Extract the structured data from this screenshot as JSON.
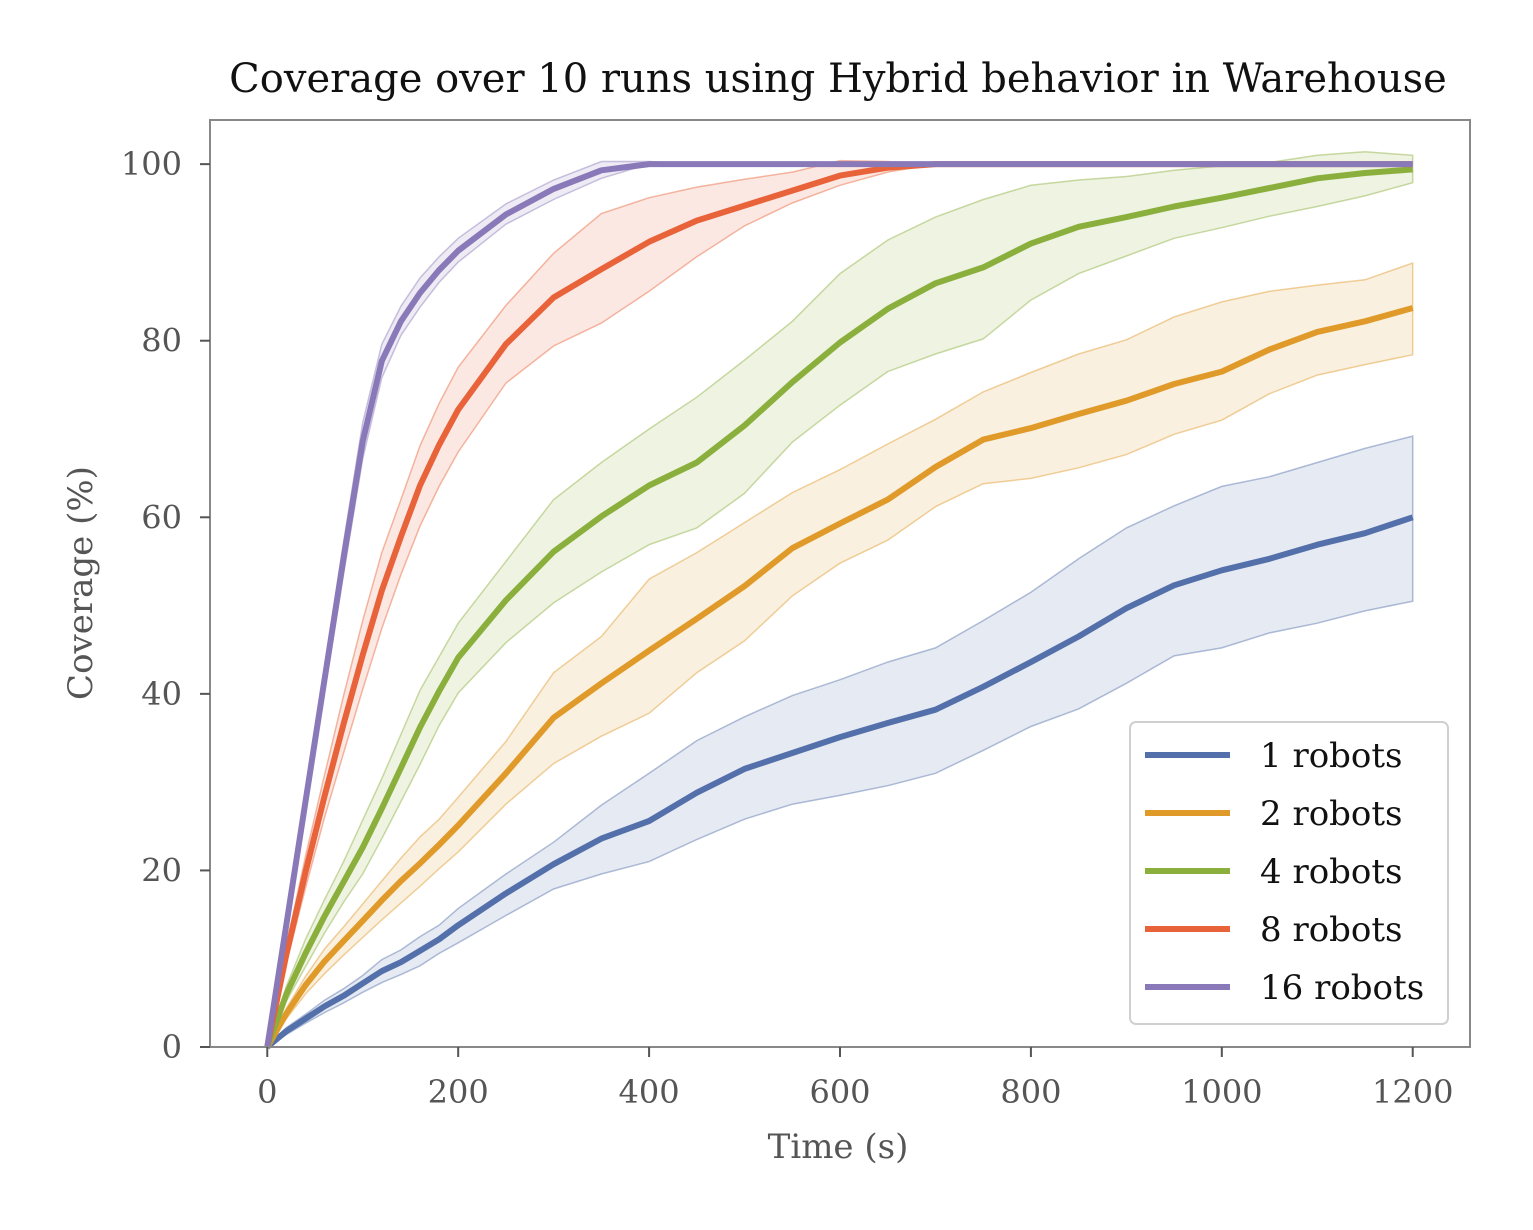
{
  "chart_data": {
    "type": "line",
    "title": "Coverage over 10 runs using Hybrid behavior in Warehouse",
    "xlabel": "Time (s)",
    "ylabel": "Coverage (%)",
    "xlim": [
      -60,
      1260
    ],
    "ylim": [
      0,
      105
    ],
    "xticks": [
      0,
      200,
      400,
      600,
      800,
      1000,
      1200
    ],
    "yticks": [
      0,
      20,
      40,
      60,
      80,
      100
    ],
    "grid": false,
    "legend_position": "bottom-right",
    "x": [
      0,
      20,
      40,
      60,
      80,
      100,
      120,
      140,
      160,
      180,
      200,
      250,
      300,
      350,
      400,
      450,
      500,
      550,
      600,
      650,
      700,
      750,
      800,
      850,
      900,
      950,
      1000,
      1050,
      1100,
      1150,
      1200
    ],
    "series": [
      {
        "name": "1 robots",
        "color": "#5470aa",
        "mean": [
          0,
          1.8,
          3.2,
          4.6,
          5.8,
          7.2,
          8.6,
          9.6,
          10.9,
          12.2,
          13.8,
          17.4,
          20.7,
          23.6,
          25.6,
          28.8,
          31.5,
          33.3,
          35.1,
          36.7,
          38.2,
          40.8,
          43.6,
          46.5,
          49.7,
          52.3,
          54.0,
          55.3,
          56.9,
          58.2,
          60.0
        ],
        "lower": [
          0,
          1.4,
          2.7,
          3.9,
          5.0,
          6.2,
          7.3,
          8.2,
          9.2,
          10.6,
          11.8,
          14.9,
          17.9,
          19.6,
          21.0,
          23.5,
          25.8,
          27.5,
          28.5,
          29.6,
          31.0,
          33.6,
          36.3,
          38.3,
          41.2,
          44.3,
          45.2,
          46.9,
          48.0,
          49.4,
          50.5
        ],
        "upper": [
          0,
          2.2,
          3.7,
          5.3,
          6.6,
          8.1,
          9.9,
          11.0,
          12.5,
          13.8,
          15.7,
          19.6,
          23.2,
          27.4,
          31.0,
          34.7,
          37.4,
          39.8,
          41.6,
          43.6,
          45.2,
          48.3,
          51.5,
          55.3,
          58.8,
          61.3,
          63.5,
          64.6,
          66.2,
          67.8,
          69.2
        ]
      },
      {
        "name": "2 robots",
        "color": "#e09a2a",
        "mean": [
          0,
          3.8,
          7.0,
          9.7,
          12.0,
          14.3,
          16.6,
          18.8,
          20.8,
          22.9,
          25.1,
          31.0,
          37.3,
          41.2,
          44.9,
          48.5,
          52.2,
          56.5,
          59.3,
          62.0,
          65.7,
          68.8,
          70.1,
          71.7,
          73.2,
          75.1,
          76.5,
          79.0,
          81.0,
          82.2,
          83.7
        ],
        "lower": [
          0,
          3.2,
          6.0,
          8.3,
          10.4,
          12.4,
          14.4,
          16.3,
          18.2,
          20.2,
          22.1,
          27.5,
          32.1,
          35.2,
          37.8,
          42.4,
          46.0,
          51.1,
          54.8,
          57.4,
          61.2,
          63.8,
          64.4,
          65.6,
          67.1,
          69.4,
          71.0,
          74.0,
          76.1,
          77.3,
          78.4
        ],
        "upper": [
          0,
          4.4,
          8.0,
          11.1,
          13.6,
          16.2,
          18.8,
          21.4,
          23.8,
          25.8,
          28.3,
          34.6,
          42.4,
          46.5,
          53.0,
          56.0,
          59.4,
          62.8,
          65.4,
          68.3,
          71.1,
          74.2,
          76.4,
          78.5,
          80.1,
          82.7,
          84.4,
          85.6,
          86.3,
          86.9,
          88.8
        ]
      },
      {
        "name": "4 robots",
        "color": "#8aaf3c",
        "mean": [
          0,
          6.0,
          10.6,
          14.8,
          18.7,
          22.6,
          27.0,
          31.6,
          36.2,
          40.3,
          44.1,
          50.6,
          56.1,
          60.1,
          63.6,
          66.2,
          70.4,
          75.3,
          79.8,
          83.6,
          86.5,
          88.3,
          91.0,
          92.9,
          94.0,
          95.2,
          96.2,
          97.3,
          98.4,
          99.0,
          99.4
        ],
        "lower": [
          0,
          5.2,
          9.1,
          12.9,
          16.4,
          19.6,
          23.6,
          27.8,
          32.0,
          36.4,
          40.1,
          45.8,
          50.3,
          53.8,
          56.9,
          58.8,
          62.7,
          68.5,
          72.7,
          76.5,
          78.5,
          80.2,
          84.6,
          87.6,
          89.6,
          91.6,
          92.8,
          94.1,
          95.2,
          96.4,
          97.9
        ],
        "upper": [
          0,
          6.9,
          12.2,
          16.7,
          21.0,
          25.7,
          30.4,
          35.4,
          40.4,
          44.2,
          48.0,
          55.0,
          62.0,
          66.2,
          70.0,
          73.6,
          77.8,
          82.2,
          87.6,
          91.4,
          94.0,
          96.0,
          97.6,
          98.2,
          98.6,
          99.3,
          99.8,
          100.2,
          101.0,
          101.4,
          101.0
        ]
      },
      {
        "name": "8 robots",
        "color": "#e8633a",
        "mean": [
          0,
          10.5,
          19.8,
          28.4,
          36.6,
          44.4,
          51.7,
          57.8,
          63.6,
          68.2,
          72.2,
          79.6,
          84.9,
          88.1,
          91.2,
          93.6,
          95.3,
          97.0,
          98.7,
          99.6,
          100,
          100,
          100,
          100,
          100,
          100,
          100,
          100,
          100,
          100,
          100
        ],
        "lower": [
          0,
          9.5,
          18.0,
          26.0,
          33.3,
          40.5,
          47.4,
          53.5,
          59.0,
          63.5,
          67.4,
          75.2,
          79.4,
          82.0,
          85.6,
          89.5,
          93.0,
          95.6,
          97.6,
          99.1,
          100,
          100,
          100,
          100,
          100,
          100,
          100,
          100,
          100,
          100,
          100
        ],
        "upper": [
          0,
          11.5,
          21.6,
          30.8,
          39.8,
          48.3,
          56.0,
          62.0,
          68.1,
          72.9,
          77.0,
          84.0,
          89.9,
          94.4,
          96.2,
          97.4,
          98.3,
          99.1,
          100.4,
          100.3,
          100,
          100,
          100,
          100,
          100,
          100,
          100,
          100,
          100,
          100,
          100
        ]
      },
      {
        "name": "16 robots",
        "color": "#8a79b8",
        "mean": [
          0,
          13.9,
          27.8,
          41.6,
          55.4,
          68.6,
          77.7,
          82.2,
          85.4,
          88.0,
          90.2,
          94.3,
          97.2,
          99.3,
          100,
          100,
          100,
          100,
          100,
          100,
          100,
          100,
          100,
          100,
          100,
          100,
          100,
          100,
          100,
          100,
          100
        ],
        "lower": [
          0,
          13.4,
          26.9,
          40.3,
          53.6,
          66.6,
          75.8,
          80.6,
          83.8,
          86.6,
          88.9,
          93.2,
          96.0,
          98.4,
          100,
          100,
          100,
          100,
          100,
          100,
          100,
          100,
          100,
          100,
          100,
          100,
          100,
          100,
          100,
          100,
          100
        ],
        "upper": [
          0,
          14.4,
          28.7,
          42.9,
          57.2,
          70.7,
          79.6,
          83.9,
          87.1,
          89.5,
          91.6,
          95.5,
          98.2,
          100.3,
          100.3,
          100,
          100,
          100,
          100,
          100,
          100,
          100,
          100,
          100,
          100,
          100,
          100,
          100,
          100,
          100,
          100
        ]
      }
    ]
  }
}
